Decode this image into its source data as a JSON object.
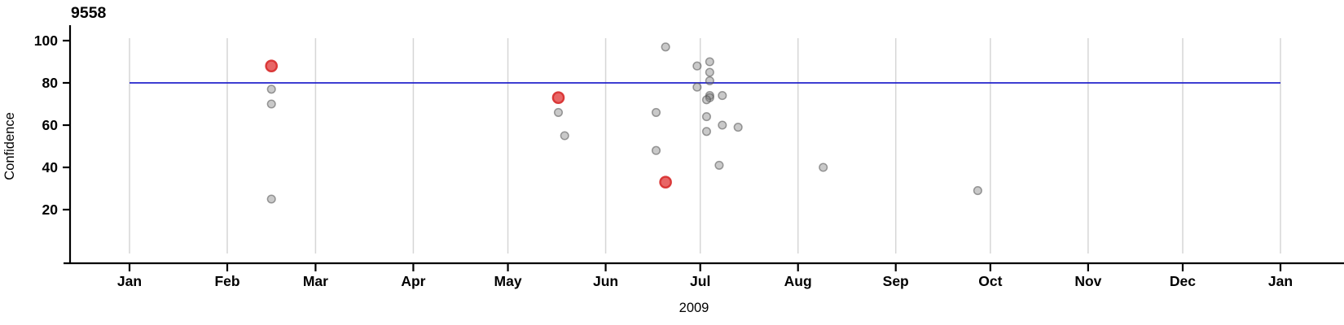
{
  "chart_data": {
    "type": "scatter",
    "title": "9558",
    "ylabel": "Confidence",
    "xlabel": "2009",
    "x_tick_labels": [
      "Jan",
      "Feb",
      "Mar",
      "Apr",
      "May",
      "Jun",
      "Jul",
      "Aug",
      "Sep",
      "Oct",
      "Nov",
      "Dec",
      "Jan"
    ],
    "y_ticks": [
      20,
      40,
      60,
      80,
      100
    ],
    "ylim": [
      0,
      101
    ],
    "x_range": [
      "2009-01-01",
      "2010-01-01"
    ],
    "grid": "vertical gridlines at each month start, no horizontal gridlines",
    "legend": "none",
    "reference_line": {
      "y": 80,
      "color": "#2222cc"
    },
    "colors": {
      "regular_point": "#c9c9c9",
      "regular_point_border": "#9a9a9a",
      "highlight_point": "#e25555",
      "highlight_point_border": "#d93b3b",
      "gridline": "#d6d6d6",
      "axis": "#000000"
    },
    "series": [
      {
        "name": "highlighted",
        "points": [
          {
            "date": "2009-02-15",
            "confidence": 88
          },
          {
            "date": "2009-05-17",
            "confidence": 73
          },
          {
            "date": "2009-06-20",
            "confidence": 33
          }
        ]
      },
      {
        "name": "regular",
        "points": [
          {
            "date": "2009-02-15",
            "confidence": 77
          },
          {
            "date": "2009-02-15",
            "confidence": 70
          },
          {
            "date": "2009-02-15",
            "confidence": 25
          },
          {
            "date": "2009-05-17",
            "confidence": 66
          },
          {
            "date": "2009-05-19",
            "confidence": 55
          },
          {
            "date": "2009-06-17",
            "confidence": 66
          },
          {
            "date": "2009-06-17",
            "confidence": 48
          },
          {
            "date": "2009-06-20",
            "confidence": 97
          },
          {
            "date": "2009-06-30",
            "confidence": 88
          },
          {
            "date": "2009-06-30",
            "confidence": 78
          },
          {
            "date": "2009-07-04",
            "confidence": 90
          },
          {
            "date": "2009-07-04",
            "confidence": 85
          },
          {
            "date": "2009-07-04",
            "confidence": 81
          },
          {
            "date": "2009-07-04",
            "confidence": 74
          },
          {
            "date": "2009-07-04",
            "confidence": 73
          },
          {
            "date": "2009-07-03",
            "confidence": 72
          },
          {
            "date": "2009-07-03",
            "confidence": 64
          },
          {
            "date": "2009-07-03",
            "confidence": 57
          },
          {
            "date": "2009-07-07",
            "confidence": 41
          },
          {
            "date": "2009-07-08",
            "confidence": 74
          },
          {
            "date": "2009-07-08",
            "confidence": 60
          },
          {
            "date": "2009-07-13",
            "confidence": 59
          },
          {
            "date": "2009-08-09",
            "confidence": 40
          },
          {
            "date": "2009-09-27",
            "confidence": 29
          }
        ]
      }
    ]
  }
}
